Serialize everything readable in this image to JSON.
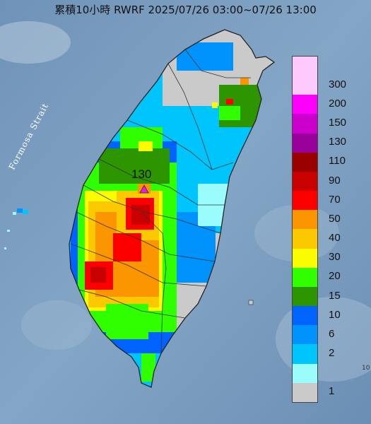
{
  "title": "累積10小時 RWRF 2025/07/26 03:00~07/26 13:00",
  "strait_label": "Formosa Strait",
  "peak": {
    "value": "130",
    "marker_color": "#e020e0"
  },
  "legend": {
    "levels": [
      {
        "label": "300",
        "color": "#fdc8fc"
      },
      {
        "label": "200",
        "color": "#fc00fc"
      },
      {
        "label": "150",
        "color": "#cc00cc"
      },
      {
        "label": "130",
        "color": "#9a009a"
      },
      {
        "label": "110",
        "color": "#9a0000"
      },
      {
        "label": "90",
        "color": "#c90000"
      },
      {
        "label": "70",
        "color": "#fc0000"
      },
      {
        "label": "50",
        "color": "#fb9600"
      },
      {
        "label": "40",
        "color": "#fcc800"
      },
      {
        "label": "30",
        "color": "#fcfc00"
      },
      {
        "label": "20",
        "color": "#30ff00"
      },
      {
        "label": "15",
        "color": "#2c9500"
      },
      {
        "label": "10",
        "color": "#0062ff"
      },
      {
        "label": "6",
        "color": "#0093fd"
      },
      {
        "label": "2",
        "color": "#00c5fd"
      },
      {
        "label": "1",
        "color": "#9afcfd"
      }
    ],
    "extra_top_color": "#fdc8fc",
    "bottom_color": "#cacaca"
  },
  "edge_mark": "10"
}
